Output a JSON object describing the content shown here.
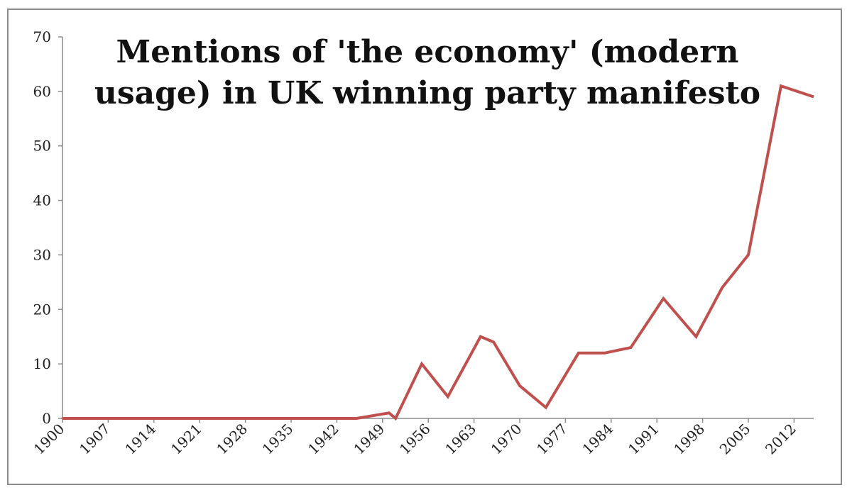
{
  "chart_data": {
    "type": "line",
    "title_lines": [
      "Mentions of 'the economy' (modern",
      "usage) in UK winning party manifesto"
    ],
    "xlabel": "",
    "ylabel": "",
    "xlim": [
      1900,
      2015
    ],
    "ylim": [
      0,
      70
    ],
    "y_ticks": [
      0,
      10,
      20,
      30,
      40,
      50,
      60,
      70
    ],
    "x_ticks": [
      1900,
      1907,
      1914,
      1921,
      1928,
      1935,
      1942,
      1949,
      1956,
      1963,
      1970,
      1977,
      1984,
      1991,
      1998,
      2005,
      2012
    ],
    "grid": false,
    "series": [
      {
        "color": "#c0504d",
        "x": [
          1900,
          1906,
          1910,
          1918,
          1922,
          1923,
          1924,
          1929,
          1931,
          1935,
          1945,
          1950,
          1951,
          1955,
          1959,
          1964,
          1966,
          1970,
          1974,
          1979,
          1983,
          1987,
          1992,
          1997,
          2001,
          2005,
          2010,
          2015
        ],
        "y": [
          0,
          0,
          0,
          0,
          0,
          0,
          0,
          0,
          0,
          0,
          0,
          1,
          0,
          10,
          4,
          15,
          14,
          6,
          2,
          12,
          12,
          13,
          22,
          15,
          24,
          30,
          61,
          59
        ]
      }
    ]
  }
}
